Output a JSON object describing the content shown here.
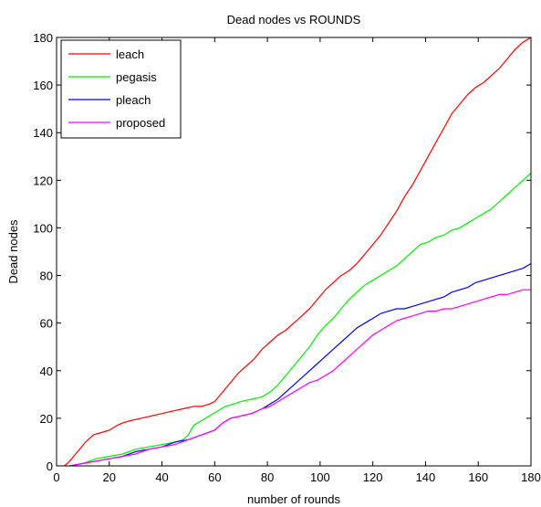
{
  "chart_data": {
    "type": "line",
    "title": "Dead nodes vs ROUNDS",
    "xlabel": "number of rounds",
    "ylabel": "Dead nodes",
    "xlim": [
      0,
      180
    ],
    "ylim": [
      0,
      180
    ],
    "xticks": [
      0,
      20,
      40,
      60,
      80,
      100,
      120,
      140,
      160,
      180
    ],
    "yticks": [
      0,
      20,
      40,
      60,
      80,
      100,
      120,
      140,
      160,
      180
    ],
    "grid": false,
    "legend_position": "top-left",
    "series": [
      {
        "name": "leach",
        "color": "#ff0000",
        "points": [
          [
            3,
            0
          ],
          [
            5,
            2
          ],
          [
            8,
            6
          ],
          [
            11,
            10
          ],
          [
            14,
            13
          ],
          [
            17,
            14
          ],
          [
            20,
            15
          ],
          [
            23,
            17
          ],
          [
            25,
            18
          ],
          [
            28,
            19
          ],
          [
            32,
            20
          ],
          [
            36,
            21
          ],
          [
            40,
            22
          ],
          [
            44,
            23
          ],
          [
            48,
            24
          ],
          [
            52,
            25
          ],
          [
            55,
            25
          ],
          [
            58,
            26
          ],
          [
            60,
            27
          ],
          [
            63,
            31
          ],
          [
            66,
            35
          ],
          [
            69,
            39
          ],
          [
            72,
            42
          ],
          [
            75,
            45
          ],
          [
            78,
            49
          ],
          [
            81,
            52
          ],
          [
            84,
            55
          ],
          [
            87,
            57
          ],
          [
            90,
            60
          ],
          [
            93,
            63
          ],
          [
            96,
            66
          ],
          [
            99,
            70
          ],
          [
            102,
            74
          ],
          [
            105,
            77
          ],
          [
            108,
            80
          ],
          [
            111,
            82
          ],
          [
            114,
            85
          ],
          [
            117,
            89
          ],
          [
            120,
            93
          ],
          [
            123,
            97
          ],
          [
            126,
            102
          ],
          [
            129,
            107
          ],
          [
            132,
            113
          ],
          [
            135,
            118
          ],
          [
            138,
            124
          ],
          [
            141,
            130
          ],
          [
            144,
            136
          ],
          [
            147,
            142
          ],
          [
            150,
            148
          ],
          [
            153,
            152
          ],
          [
            156,
            156
          ],
          [
            159,
            159
          ],
          [
            162,
            161
          ],
          [
            165,
            164
          ],
          [
            168,
            167
          ],
          [
            171,
            171
          ],
          [
            174,
            175
          ],
          [
            177,
            178
          ],
          [
            180,
            180
          ]
        ]
      },
      {
        "name": "pegasis",
        "color": "#00ee00",
        "points": [
          [
            5,
            0
          ],
          [
            10,
            1
          ],
          [
            15,
            3
          ],
          [
            20,
            4
          ],
          [
            25,
            5
          ],
          [
            30,
            7
          ],
          [
            35,
            8
          ],
          [
            40,
            9
          ],
          [
            45,
            10
          ],
          [
            48,
            11
          ],
          [
            50,
            13
          ],
          [
            52,
            17
          ],
          [
            55,
            19
          ],
          [
            58,
            21
          ],
          [
            61,
            23
          ],
          [
            64,
            25
          ],
          [
            67,
            26
          ],
          [
            70,
            27
          ],
          [
            74,
            28
          ],
          [
            78,
            29
          ],
          [
            81,
            31
          ],
          [
            84,
            34
          ],
          [
            87,
            38
          ],
          [
            90,
            42
          ],
          [
            93,
            46
          ],
          [
            96,
            50
          ],
          [
            99,
            55
          ],
          [
            102,
            59
          ],
          [
            105,
            62
          ],
          [
            108,
            66
          ],
          [
            111,
            70
          ],
          [
            114,
            73
          ],
          [
            117,
            76
          ],
          [
            120,
            78
          ],
          [
            123,
            80
          ],
          [
            126,
            82
          ],
          [
            129,
            84
          ],
          [
            132,
            87
          ],
          [
            135,
            90
          ],
          [
            138,
            93
          ],
          [
            141,
            94
          ],
          [
            144,
            96
          ],
          [
            147,
            97
          ],
          [
            150,
            99
          ],
          [
            153,
            100
          ],
          [
            156,
            102
          ],
          [
            159,
            104
          ],
          [
            162,
            106
          ],
          [
            165,
            108
          ],
          [
            168,
            111
          ],
          [
            171,
            114
          ],
          [
            174,
            117
          ],
          [
            177,
            120
          ],
          [
            180,
            123
          ]
        ]
      },
      {
        "name": "pleach",
        "color": "#0000ff",
        "points": [
          [
            5,
            0
          ],
          [
            10,
            1
          ],
          [
            15,
            2
          ],
          [
            20,
            3
          ],
          [
            25,
            4
          ],
          [
            30,
            6
          ],
          [
            35,
            7
          ],
          [
            40,
            8
          ],
          [
            45,
            10
          ],
          [
            50,
            11
          ],
          [
            55,
            13
          ],
          [
            60,
            15
          ],
          [
            63,
            18
          ],
          [
            66,
            20
          ],
          [
            70,
            21
          ],
          [
            74,
            22
          ],
          [
            78,
            24
          ],
          [
            81,
            26
          ],
          [
            84,
            28
          ],
          [
            87,
            31
          ],
          [
            90,
            34
          ],
          [
            93,
            37
          ],
          [
            96,
            40
          ],
          [
            99,
            43
          ],
          [
            102,
            46
          ],
          [
            105,
            49
          ],
          [
            108,
            52
          ],
          [
            111,
            55
          ],
          [
            114,
            58
          ],
          [
            117,
            60
          ],
          [
            120,
            62
          ],
          [
            123,
            64
          ],
          [
            126,
            65
          ],
          [
            129,
            66
          ],
          [
            132,
            66
          ],
          [
            135,
            67
          ],
          [
            138,
            68
          ],
          [
            141,
            69
          ],
          [
            144,
            70
          ],
          [
            147,
            71
          ],
          [
            150,
            73
          ],
          [
            153,
            74
          ],
          [
            156,
            75
          ],
          [
            159,
            77
          ],
          [
            162,
            78
          ],
          [
            165,
            79
          ],
          [
            168,
            80
          ],
          [
            171,
            81
          ],
          [
            174,
            82
          ],
          [
            177,
            83
          ],
          [
            180,
            85
          ]
        ]
      },
      {
        "name": "proposed",
        "color": "#ff00ff",
        "points": [
          [
            5,
            0
          ],
          [
            10,
            1
          ],
          [
            15,
            2
          ],
          [
            20,
            3
          ],
          [
            25,
            4
          ],
          [
            30,
            5
          ],
          [
            35,
            7
          ],
          [
            40,
            8
          ],
          [
            45,
            9
          ],
          [
            50,
            11
          ],
          [
            55,
            13
          ],
          [
            60,
            15
          ],
          [
            63,
            18
          ],
          [
            66,
            20
          ],
          [
            70,
            21
          ],
          [
            74,
            22
          ],
          [
            78,
            24
          ],
          [
            81,
            25
          ],
          [
            84,
            27
          ],
          [
            87,
            29
          ],
          [
            90,
            31
          ],
          [
            93,
            33
          ],
          [
            96,
            35
          ],
          [
            99,
            36
          ],
          [
            102,
            38
          ],
          [
            105,
            40
          ],
          [
            108,
            43
          ],
          [
            111,
            46
          ],
          [
            114,
            49
          ],
          [
            117,
            52
          ],
          [
            120,
            55
          ],
          [
            123,
            57
          ],
          [
            126,
            59
          ],
          [
            129,
            61
          ],
          [
            132,
            62
          ],
          [
            135,
            63
          ],
          [
            138,
            64
          ],
          [
            141,
            65
          ],
          [
            144,
            65
          ],
          [
            147,
            66
          ],
          [
            150,
            66
          ],
          [
            153,
            67
          ],
          [
            156,
            68
          ],
          [
            159,
            69
          ],
          [
            162,
            70
          ],
          [
            165,
            71
          ],
          [
            168,
            72
          ],
          [
            171,
            72
          ],
          [
            174,
            73
          ],
          [
            177,
            74
          ],
          [
            180,
            74
          ]
        ]
      }
    ]
  }
}
